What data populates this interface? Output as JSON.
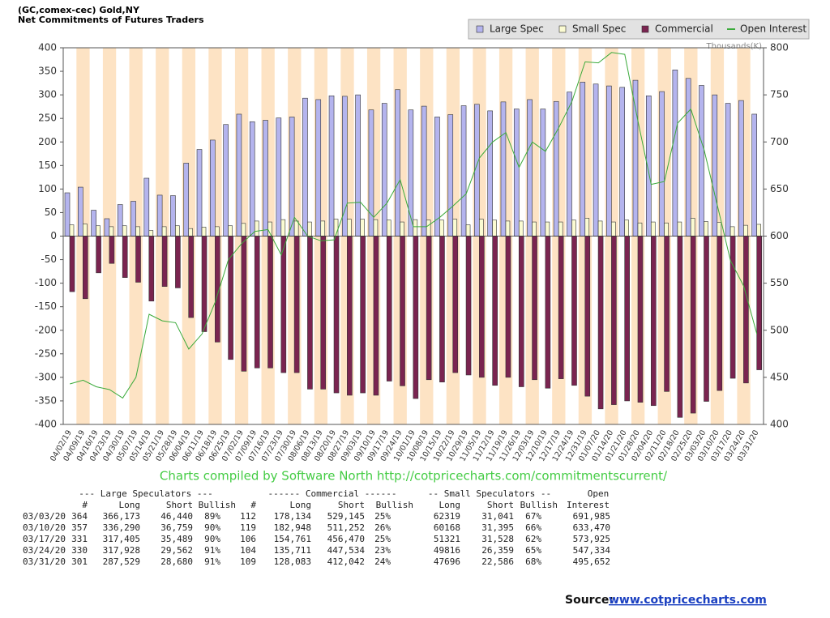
{
  "chart_data": {
    "type": "bar",
    "title": "(GC,comex-cec) Gold,NY",
    "subtitle": "Net Commitments of Futures Traders",
    "y2_label": "Thousands(K)",
    "categories": [
      "04/02/19",
      "04/09/19",
      "04/16/19",
      "04/23/19",
      "04/30/19",
      "05/07/19",
      "05/14/19",
      "05/21/19",
      "05/28/19",
      "06/04/19",
      "06/11/19",
      "06/18/19",
      "06/25/19",
      "07/02/19",
      "07/09/19",
      "07/16/19",
      "07/23/19",
      "07/30/19",
      "08/06/19",
      "08/13/19",
      "08/20/19",
      "08/27/19",
      "09/03/19",
      "09/10/19",
      "09/17/19",
      "09/24/19",
      "10/01/19",
      "10/08/19",
      "10/15/19",
      "10/22/19",
      "10/29/19",
      "11/05/19",
      "11/12/19",
      "11/19/19",
      "11/26/19",
      "12/03/19",
      "12/10/19",
      "12/17/19",
      "12/24/19",
      "12/31/19",
      "01/07/20",
      "01/14/20",
      "01/21/20",
      "01/28/20",
      "02/04/20",
      "02/11/20",
      "02/18/20",
      "02/25/20",
      "03/03/20",
      "03/10/20",
      "03/17/20",
      "03/24/20",
      "03/31/20"
    ],
    "series": [
      {
        "name": "Large Spec",
        "color": "#b4b4ee",
        "values": [
          92,
          104,
          55,
          37,
          67,
          74,
          123,
          87,
          86,
          155,
          184,
          204,
          237,
          259,
          243,
          246,
          251,
          253,
          293,
          290,
          298,
          297,
          300,
          268,
          282,
          311,
          268,
          276,
          253,
          258,
          277,
          280,
          266,
          285,
          270,
          290,
          270,
          286,
          306,
          327,
          323,
          319,
          316,
          331,
          298,
          307,
          353,
          335,
          320,
          300,
          282,
          288,
          259
        ]
      },
      {
        "name": "Small Spec",
        "color": "#fbfbd2",
        "values": [
          24,
          26,
          22,
          20,
          22,
          20,
          12,
          20,
          22,
          16,
          19,
          20,
          22,
          27,
          32,
          30,
          35,
          32,
          30,
          32,
          36,
          36,
          36,
          35,
          34,
          30,
          35,
          34,
          34,
          36,
          24,
          36,
          34,
          32,
          32,
          30,
          30,
          30,
          34,
          38,
          32,
          30,
          34,
          28,
          30,
          28,
          30,
          38,
          31,
          29,
          20,
          23,
          25
        ]
      },
      {
        "name": "Commercial",
        "color": "#7a2450",
        "values": [
          -118,
          -133,
          -78,
          -58,
          -88,
          -98,
          -138,
          -107,
          -110,
          -173,
          -203,
          -225,
          -262,
          -287,
          -280,
          -280,
          -290,
          -290,
          -325,
          -325,
          -333,
          -338,
          -333,
          -338,
          -308,
          -318,
          -345,
          -305,
          -310,
          -290,
          -295,
          -300,
          -317,
          -300,
          -320,
          -305,
          -323,
          -303,
          -317,
          -340,
          -367,
          -358,
          -350,
          -353,
          -360,
          -330,
          -385,
          -376,
          -351,
          -328,
          -302,
          -312,
          -284
        ]
      },
      {
        "name": "Open Interest",
        "color": "#3aaa3a",
        "type": "line",
        "axis": "y2",
        "values": [
          443,
          447,
          440,
          437,
          428,
          450,
          517,
          510,
          508,
          480,
          496,
          530,
          575,
          592,
          605,
          607,
          580,
          620,
          600,
          595,
          596,
          635,
          636,
          620,
          635,
          660,
          610,
          610,
          620,
          632,
          645,
          683,
          700,
          710,
          673,
          700,
          690,
          715,
          743,
          785,
          784,
          795,
          793,
          722,
          655,
          658,
          720,
          735,
          692,
          633,
          574,
          547,
          496
        ]
      }
    ],
    "ylim": [
      -400,
      400
    ],
    "yticks": [
      -400,
      -350,
      -300,
      -250,
      -200,
      -150,
      -100,
      -50,
      0,
      50,
      100,
      150,
      200,
      250,
      300,
      350,
      400
    ],
    "y2lim": [
      400,
      800
    ],
    "y2ticks": [
      400,
      450,
      500,
      550,
      600,
      650,
      700,
      750,
      800
    ],
    "grid": false,
    "legend": "top-right"
  },
  "credit": "Charts compiled by Software North  http://cotpricecharts.com/commitmentscurrent/",
  "table": {
    "group_headers": [
      "--- Large Speculators ---",
      "------ Commercial ------",
      "-- Small Speculators --",
      "Open"
    ],
    "headers": [
      "#",
      "Long",
      "Short",
      "Bullish",
      "#",
      "Long",
      "Short",
      "Bullish",
      "Long",
      "Short",
      "Bullish",
      "Interest"
    ],
    "rows": [
      [
        "03/03/20",
        "364",
        "366,173",
        "46,440",
        "89%",
        "112",
        "178,134",
        "529,145",
        "25%",
        "62319",
        "31,041",
        "67%",
        "691,985"
      ],
      [
        "03/10/20",
        "357",
        "336,290",
        "36,759",
        "90%",
        "119",
        "182,948",
        "511,252",
        "26%",
        "60168",
        "31,395",
        "66%",
        "633,470"
      ],
      [
        "03/17/20",
        "331",
        "317,405",
        "35,489",
        "90%",
        "106",
        "154,761",
        "456,470",
        "25%",
        "51321",
        "31,528",
        "62%",
        "573,925"
      ],
      [
        "03/24/20",
        "330",
        "317,928",
        "29,562",
        "91%",
        "104",
        "135,711",
        "447,534",
        "23%",
        "49816",
        "26,359",
        "65%",
        "547,334"
      ],
      [
        "03/31/20",
        "301",
        "287,529",
        "28,680",
        "91%",
        "109",
        "128,083",
        "412,042",
        "24%",
        "47696",
        "22,586",
        "68%",
        "495,652"
      ]
    ]
  },
  "source": {
    "label": "Source:",
    "link": "www.cotpricecharts.com"
  }
}
